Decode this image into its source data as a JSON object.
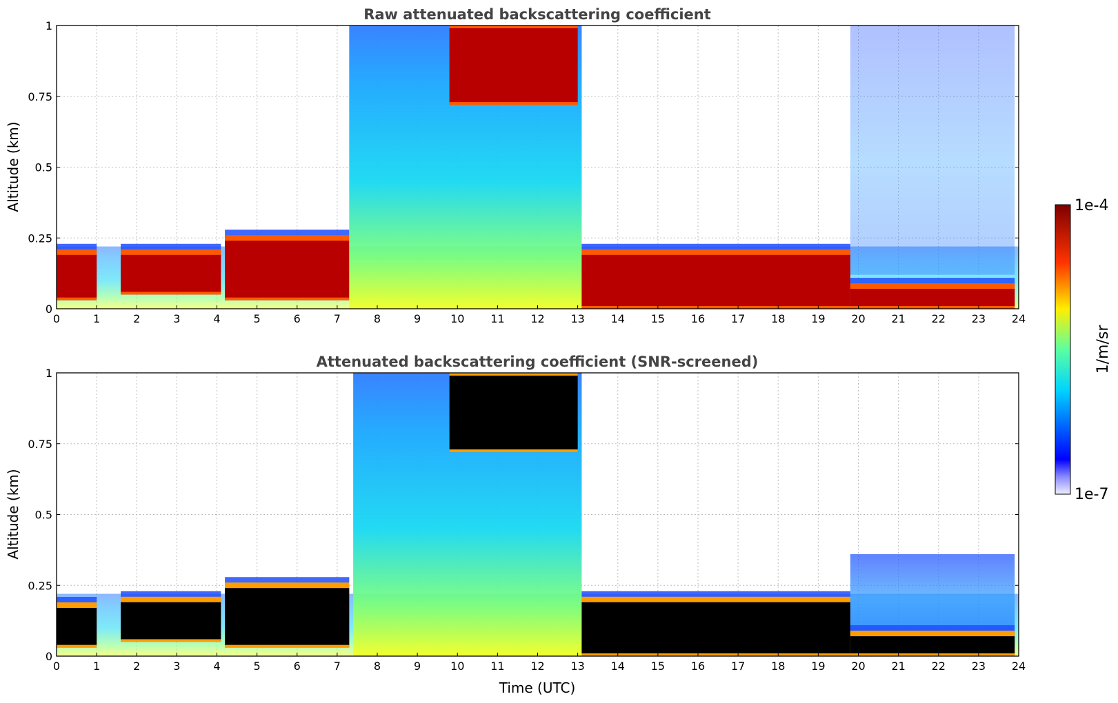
{
  "chart_data": [
    {
      "type": "heatmap",
      "title": "Raw attenuated backscattering coefficient",
      "xlabel": "",
      "ylabel": "Altitude (km)",
      "xlim": [
        0,
        24
      ],
      "ylim": [
        0,
        1
      ],
      "x_ticks": [
        "0",
        "1",
        "2",
        "3",
        "4",
        "5",
        "6",
        "7",
        "8",
        "9",
        "10",
        "11",
        "12",
        "13",
        "14",
        "15",
        "16",
        "17",
        "18",
        "19",
        "20",
        "21",
        "22",
        "23",
        "24"
      ],
      "y_ticks": [
        "0",
        "0.25",
        "0.5",
        "0.75",
        "1"
      ],
      "grid": true,
      "cloud_layers": [
        {
          "x_start": 0.0,
          "x_end": 1.0,
          "base_km": 0.03,
          "top_km": 0.2,
          "level": "high"
        },
        {
          "x_start": 1.6,
          "x_end": 4.1,
          "base_km": 0.05,
          "top_km": 0.2,
          "level": "high"
        },
        {
          "x_start": 4.2,
          "x_end": 7.3,
          "base_km": 0.03,
          "top_km": 0.25,
          "level": "high"
        },
        {
          "x_start": 7.3,
          "x_end": 13.1,
          "base_km": 0.0,
          "top_km": 1.0,
          "level": "medium"
        },
        {
          "x_start": 9.8,
          "x_end": 13.0,
          "base_km": 0.72,
          "top_km": 1.0,
          "level": "high"
        },
        {
          "x_start": 13.1,
          "x_end": 19.8,
          "base_km": 0.0,
          "top_km": 0.2,
          "level": "high"
        },
        {
          "x_start": 19.8,
          "x_end": 23.9,
          "base_km": 0.0,
          "top_km": 0.08,
          "level": "high"
        }
      ]
    },
    {
      "type": "heatmap",
      "title": "Attenuated backscattering coefficient (SNR-screened)",
      "xlabel": "Time (UTC)",
      "ylabel": "Altitude (km)",
      "xlim": [
        0,
        24
      ],
      "ylim": [
        0,
        1
      ],
      "x_ticks": [
        "0",
        "1",
        "2",
        "3",
        "4",
        "5",
        "6",
        "7",
        "8",
        "9",
        "10",
        "11",
        "12",
        "13",
        "14",
        "15",
        "16",
        "17",
        "18",
        "19",
        "20",
        "21",
        "22",
        "23",
        "24"
      ],
      "y_ticks": [
        "0",
        "0.25",
        "0.5",
        "0.75",
        "1"
      ],
      "grid": true,
      "cloud_layers": [
        {
          "x_start": 0.0,
          "x_end": 1.0,
          "base_km": 0.03,
          "top_km": 0.18,
          "level": "saturated"
        },
        {
          "x_start": 1.6,
          "x_end": 4.1,
          "base_km": 0.05,
          "top_km": 0.2,
          "level": "saturated"
        },
        {
          "x_start": 4.2,
          "x_end": 7.3,
          "base_km": 0.03,
          "top_km": 0.25,
          "level": "saturated"
        },
        {
          "x_start": 7.4,
          "x_end": 13.1,
          "base_km": 0.0,
          "top_km": 1.0,
          "level": "medium"
        },
        {
          "x_start": 9.8,
          "x_end": 13.0,
          "base_km": 0.72,
          "top_km": 1.0,
          "level": "saturated"
        },
        {
          "x_start": 13.1,
          "x_end": 19.8,
          "base_km": 0.0,
          "top_km": 0.2,
          "level": "saturated"
        },
        {
          "x_start": 19.8,
          "x_end": 23.9,
          "base_km": 0.0,
          "top_km": 0.08,
          "level": "saturated"
        }
      ]
    }
  ],
  "colorbar": {
    "label": "1/m/sr",
    "max_label": "1e-4",
    "min_label": "1e-7",
    "colormap": "jet",
    "placement": "right"
  }
}
